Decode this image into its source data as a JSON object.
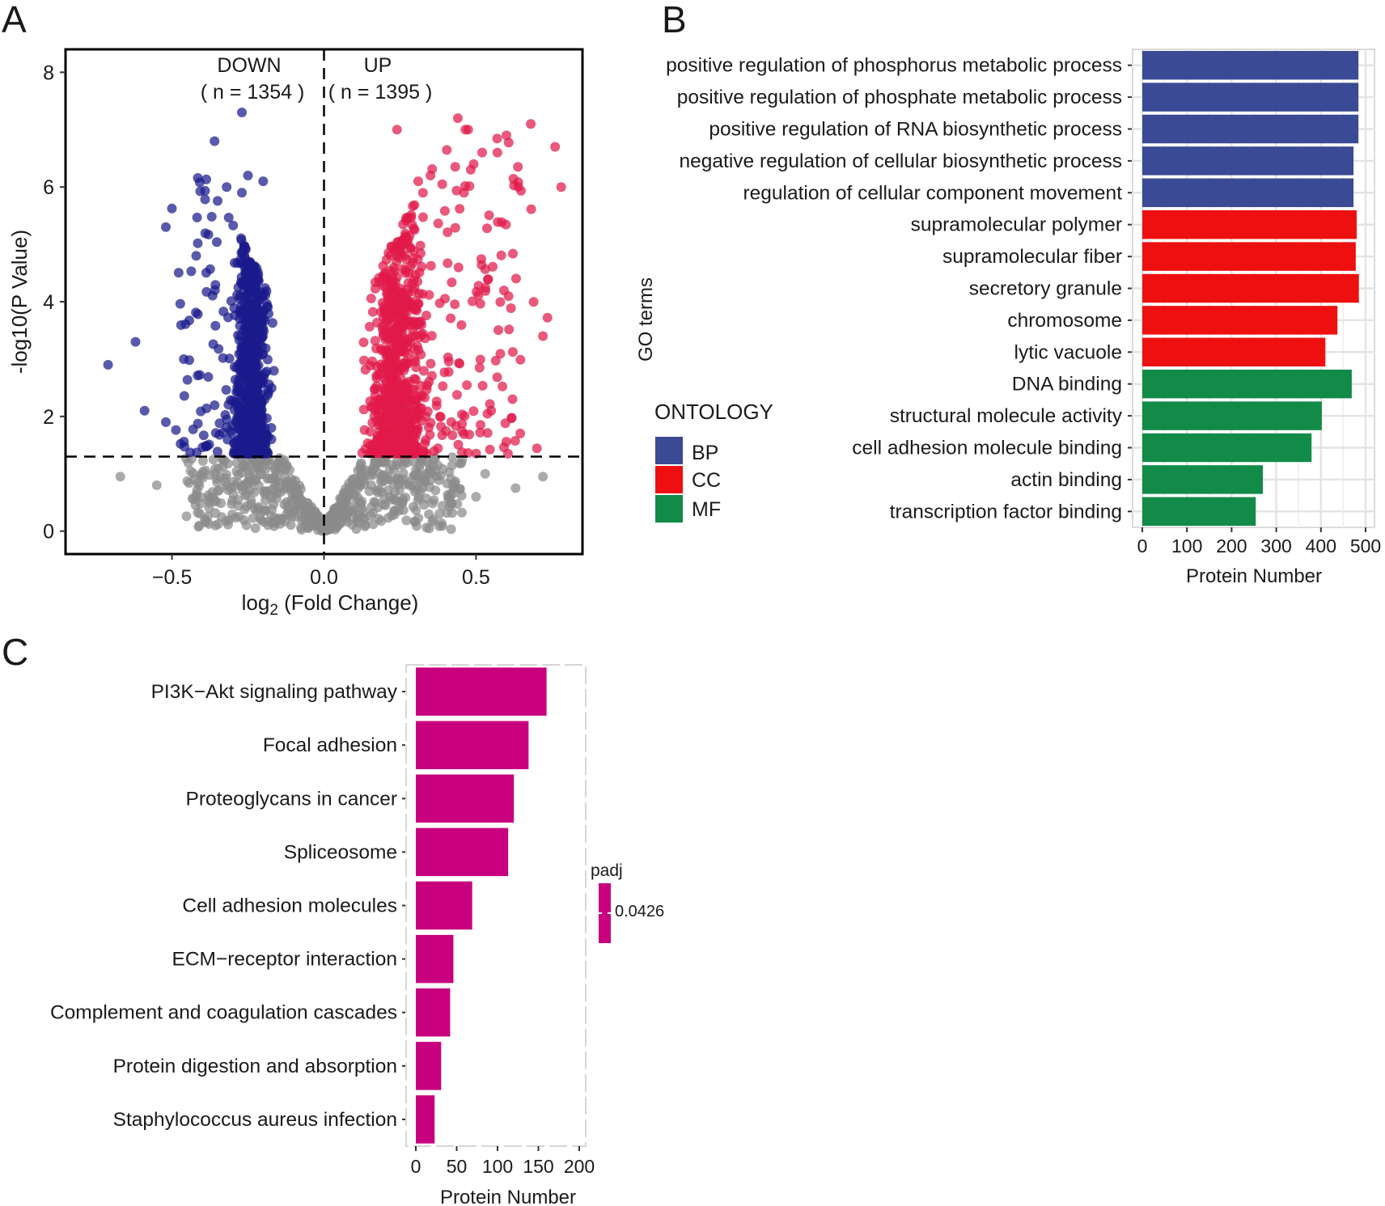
{
  "figure": {
    "panels": [
      {
        "label": "A"
      },
      {
        "label": "B"
      },
      {
        "label": "C"
      }
    ]
  },
  "chart_data": [
    {
      "panel": "A",
      "type": "scatter",
      "title": "",
      "xlabel_main": "log",
      "xlabel_sub": "2",
      "xlabel_rest": " (Fold Change)",
      "ylabel": "-log10(P Value)",
      "xlim": [
        -0.85,
        0.85
      ],
      "ylim": [
        -0.4,
        8.4
      ],
      "x_ticks": [
        -0.5,
        0.0,
        0.5
      ],
      "x_tick_labels": [
        "−0.5",
        "0.0",
        "0.5"
      ],
      "y_ticks": [
        0,
        2,
        4,
        6,
        8
      ],
      "y_tick_labels": [
        "0",
        "2",
        "4",
        "6",
        "8"
      ],
      "threshold_y": 1.3,
      "threshold_x": 0.0,
      "annotations": {
        "down_label": "DOWN",
        "down_count": "( n = 1354 )",
        "up_label": "UP",
        "up_count": "( n = 1395 )"
      },
      "series": [
        {
          "name": "DOWN",
          "color": "#1a1a8c",
          "count": 1354
        },
        {
          "name": "UP",
          "color": "#e0194a",
          "count": 1395
        },
        {
          "name": "NS",
          "color": "#8a8a8a"
        }
      ],
      "sample_points": {
        "down": [
          [
            -0.27,
            7.3
          ],
          [
            -0.36,
            6.8
          ],
          [
            -0.25,
            6.2
          ],
          [
            -0.2,
            6.1
          ],
          [
            -0.32,
            6.0
          ],
          [
            -0.27,
            5.9
          ],
          [
            -0.52,
            5.3
          ],
          [
            -0.62,
            3.3
          ],
          [
            -0.71,
            2.9
          ],
          [
            -0.59,
            2.1
          ],
          [
            -0.52,
            1.9
          ]
        ],
        "up": [
          [
            0.44,
            7.2
          ],
          [
            0.24,
            7.0
          ],
          [
            0.68,
            7.1
          ],
          [
            0.6,
            6.9
          ],
          [
            0.76,
            6.7
          ],
          [
            0.57,
            6.6
          ],
          [
            0.52,
            6.6
          ],
          [
            0.78,
            6.0
          ],
          [
            0.31,
            6.1
          ],
          [
            0.35,
            6.2
          ],
          [
            0.72,
            3.4
          ],
          [
            0.62,
            2.3
          ],
          [
            0.55,
            2.1
          ]
        ],
        "ns": [
          [
            -0.67,
            0.95
          ],
          [
            -0.55,
            0.8
          ],
          [
            -0.42,
            0.6
          ],
          [
            0.72,
            0.95
          ],
          [
            0.63,
            0.75
          ],
          [
            0.53,
            1.0
          ],
          [
            0.5,
            0.6
          ]
        ]
      }
    },
    {
      "panel": "B",
      "type": "bar",
      "orientation": "horizontal",
      "ylabel": "GO terms",
      "xlabel": "Protein Number",
      "xlim": [
        0,
        500
      ],
      "x_ticks": [
        0,
        100,
        200,
        300,
        400,
        500
      ],
      "x_tick_labels": [
        "0",
        "100",
        "200",
        "300",
        "400",
        "500"
      ],
      "legend_title": "ONTOLOGY",
      "legend_position": "left",
      "legend": [
        {
          "key": "BP",
          "color": "#3b4a94"
        },
        {
          "key": "CC",
          "color": "#ee1010"
        },
        {
          "key": "MF",
          "color": "#128a48"
        }
      ],
      "categories": [
        "positive regulation of phosphorus metabolic process",
        "positive regulation of phosphate metabolic process",
        "positive regulation of RNA biosynthetic process",
        "negative regulation of cellular biosynthetic process",
        "regulation of cellular component movement",
        "supramolecular polymer",
        "supramolecular fiber",
        "secretory granule",
        "chromosome",
        "lytic vacuole",
        "DNA binding",
        "structural molecule activity",
        "cell adhesion molecule binding",
        "actin binding",
        "transcription factor binding"
      ],
      "values": [
        484,
        484,
        484,
        473,
        473,
        480,
        478,
        485,
        437,
        410,
        469,
        402,
        379,
        270,
        254
      ],
      "groups": [
        "BP",
        "BP",
        "BP",
        "BP",
        "BP",
        "CC",
        "CC",
        "CC",
        "CC",
        "CC",
        "MF",
        "MF",
        "MF",
        "MF",
        "MF"
      ]
    },
    {
      "panel": "C",
      "type": "bar",
      "orientation": "horizontal",
      "xlabel": "Protein Number",
      "ylabel": "",
      "xlim": [
        0,
        200
      ],
      "x_ticks": [
        0,
        50,
        100,
        150,
        200
      ],
      "x_tick_labels": [
        "0",
        "50",
        "100",
        "150",
        "200"
      ],
      "bar_color": "#c8007e",
      "legend_title": "padj",
      "legend_value": "0.0426",
      "legend_position": "right",
      "categories": [
        "PI3K−Akt signaling pathway",
        "Focal adhesion",
        "Proteoglycans in cancer",
        "Spliceosome",
        "Cell adhesion molecules",
        "ECM−receptor interaction",
        "Complement and coagulation cascades",
        "Protein digestion and absorption",
        "Staphylococcus aureus infection"
      ],
      "values": [
        160,
        138,
        120,
        113,
        69,
        46,
        42,
        31,
        23
      ]
    }
  ]
}
